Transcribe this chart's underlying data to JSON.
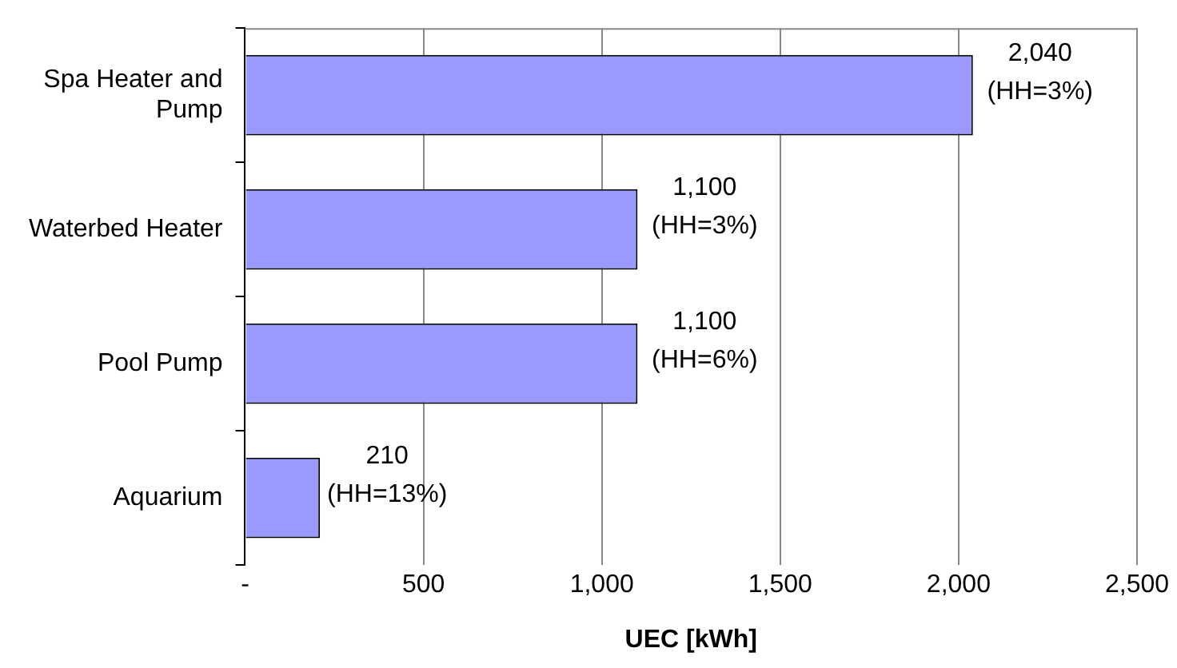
{
  "chart_data": {
    "type": "bar",
    "orientation": "horizontal",
    "xlabel": "UEC [kWh]",
    "categories": [
      "Spa Heater and Pump",
      "Waterbed Heater",
      "Pool Pump",
      "Aquarium"
    ],
    "values": [
      2040,
      1100,
      1100,
      210
    ],
    "color": "#9999ff",
    "value_labels": [
      "2,040\n(HH=3%)",
      "1,100\n(HH=3%)",
      "1,100\n(HH=6%)",
      "210\n(HH=13%)"
    ],
    "xlim": [
      0,
      2500
    ],
    "xticks": [
      {
        "value": 0,
        "label": "-"
      },
      500,
      {
        "value": 1000,
        "label": "1,000"
      },
      {
        "value": 1500,
        "label": "1,500"
      },
      {
        "value": 2000,
        "label": "2,000"
      },
      {
        "value": 2500,
        "label": "2,500"
      }
    ],
    "grid": "x",
    "legend": false
  }
}
